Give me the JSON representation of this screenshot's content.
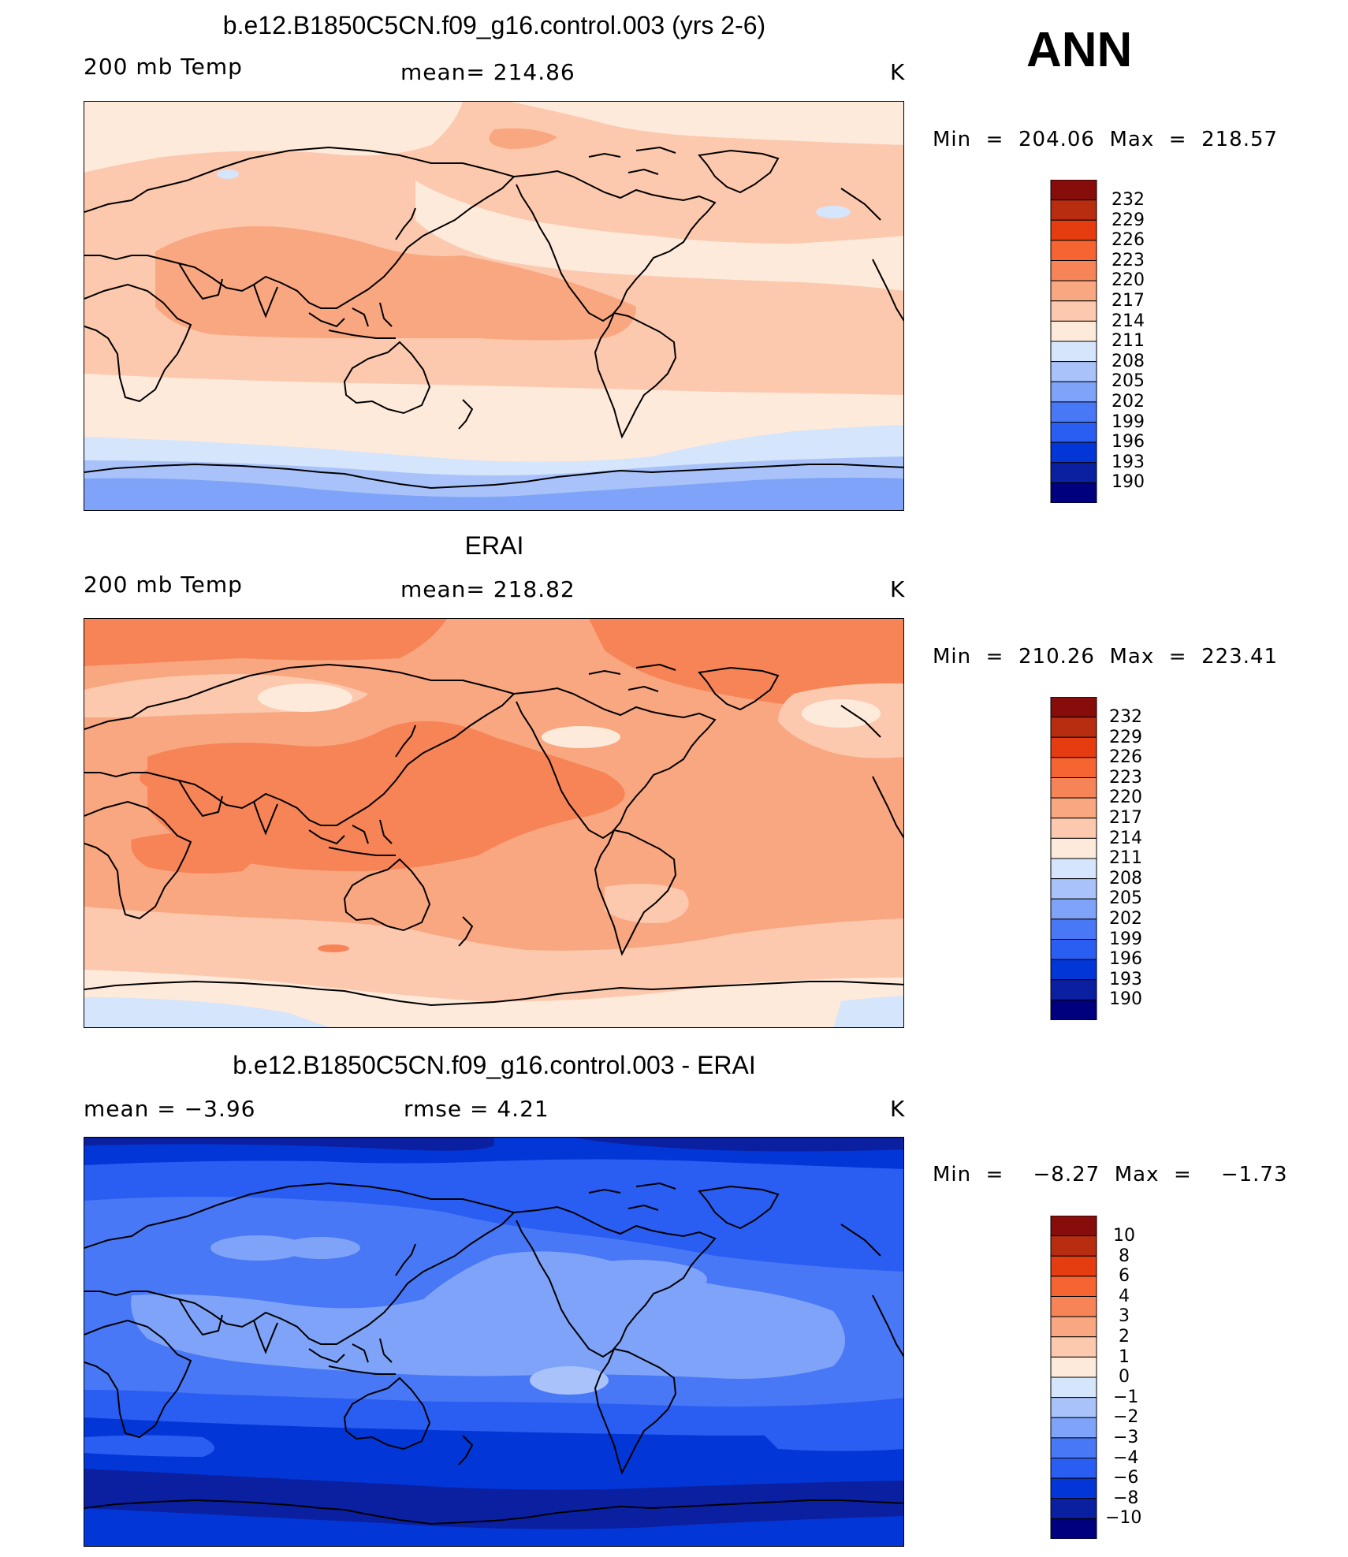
{
  "season": "ANN",
  "colors": {
    "abs_scale": [
      "#00007f",
      "#0b20a0",
      "#0336d6",
      "#2a5df2",
      "#4878f5",
      "#7fa3f8",
      "#a9c3fa",
      "#d5e5fb",
      "#fdeadb",
      "#fcc9ae",
      "#f9a781",
      "#f78456",
      "#f66432",
      "#e63d10",
      "#b82d10",
      "#870d0a"
    ],
    "diff_scale": [
      "#00007f",
      "#0b20a0",
      "#0336d6",
      "#2a5df2",
      "#4878f5",
      "#7fa3f8",
      "#a9c3fa",
      "#d5e5fb",
      "#fdeadb",
      "#fcc9ae",
      "#f9a781",
      "#f78456",
      "#f66432",
      "#e63d10",
      "#b82d10",
      "#870d0a"
    ]
  },
  "panels": [
    {
      "title": "b.e12.B1850C5CN.f09_g16.control.003 (yrs 2-6)",
      "left_label": "200 mb Temp",
      "center_label": "mean=  214.86",
      "right_label": "K",
      "minmax": "Min  =  204.06  Max  =  218.57",
      "colorbar_ticks": [
        "232",
        "229",
        "226",
        "223",
        "220",
        "217",
        "214",
        "211",
        "208",
        "205",
        "202",
        "199",
        "196",
        "193",
        "190"
      ]
    },
    {
      "title": "ERAI",
      "left_label": "200 mb Temp",
      "center_label": "mean=  218.82",
      "right_label": "K",
      "minmax": "Min  =  210.26  Max  =  223.41",
      "colorbar_ticks": [
        "232",
        "229",
        "226",
        "223",
        "220",
        "217",
        "214",
        "211",
        "208",
        "205",
        "202",
        "199",
        "196",
        "193",
        "190"
      ]
    },
    {
      "title": "b.e12.B1850C5CN.f09_g16.control.003 - ERAI",
      "left_label": "mean  =     −3.96",
      "center_label": "rmse  =     4.21",
      "right_label": "K",
      "minmax": "Min  =    −8.27  Max  =    −1.73",
      "colorbar_ticks": [
        "10",
        "8",
        "6",
        "4",
        "3",
        "2",
        "1",
        "0",
        "−1",
        "−2",
        "−3",
        "−4",
        "−6",
        "−8",
        "−10"
      ]
    }
  ]
}
